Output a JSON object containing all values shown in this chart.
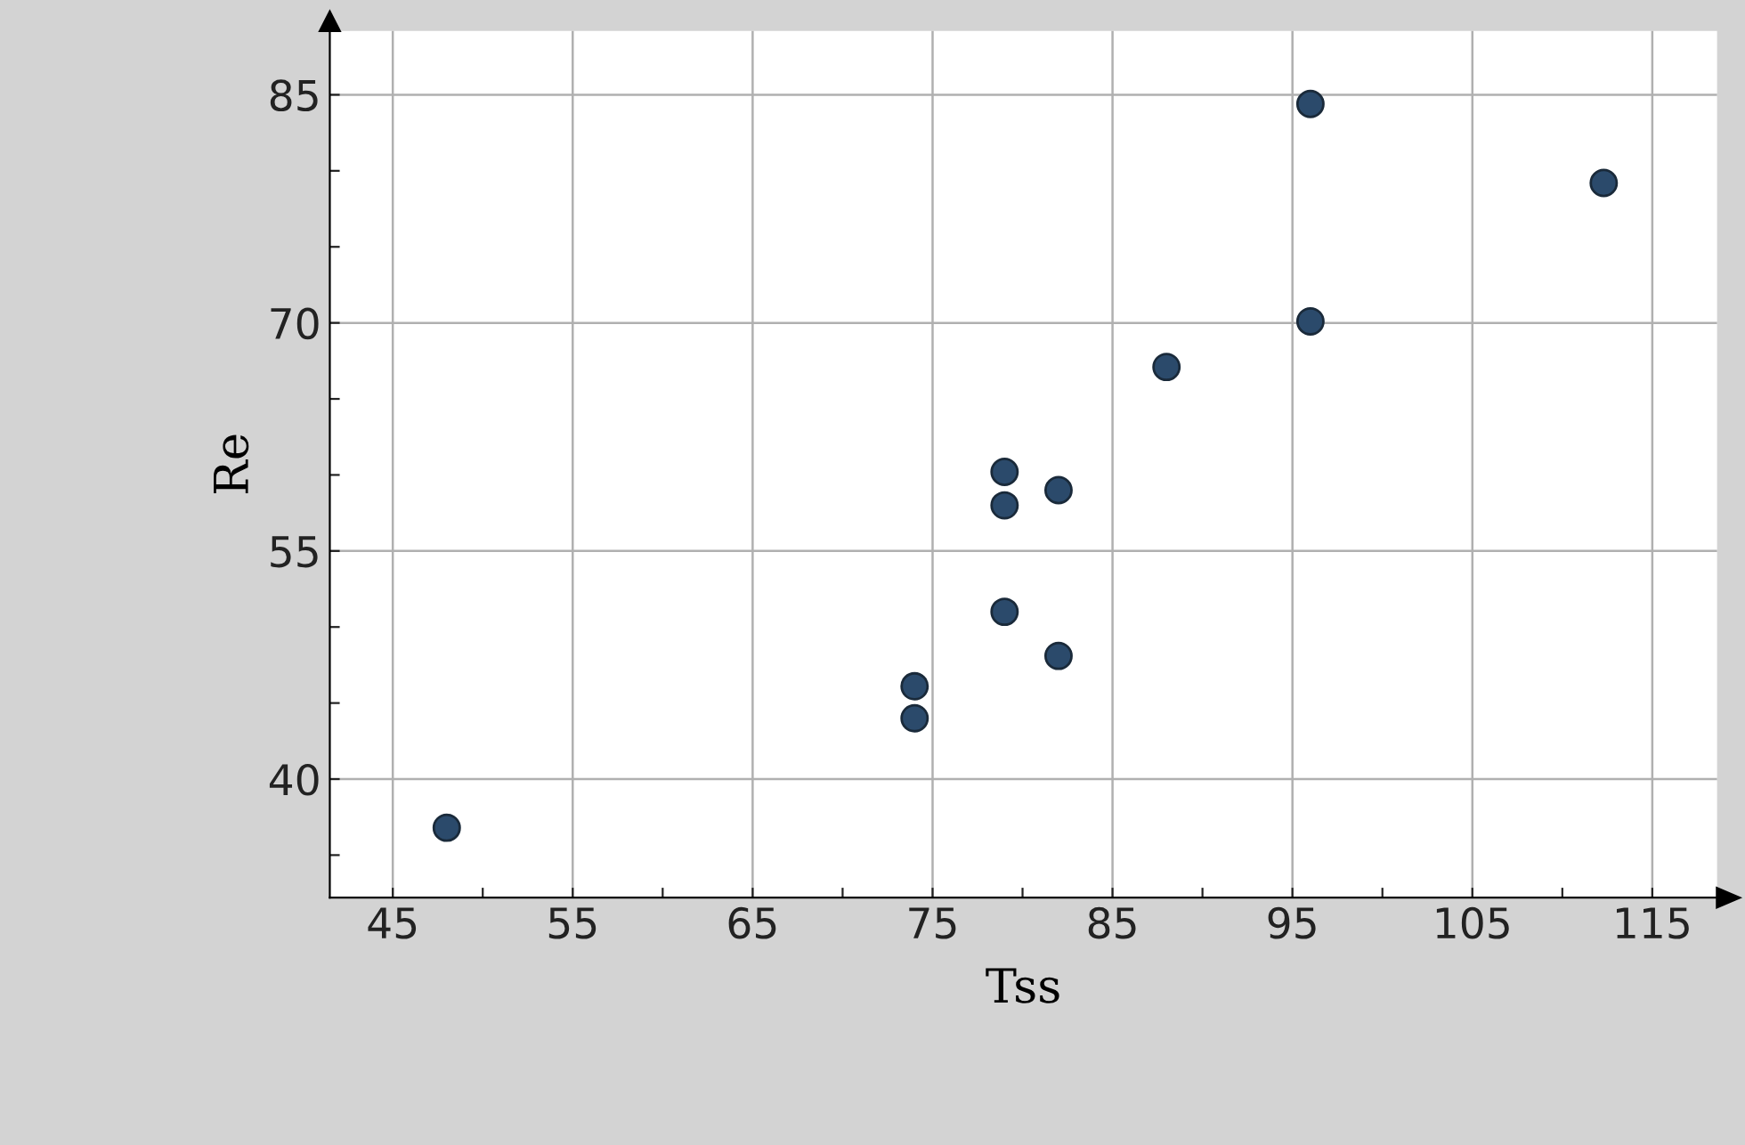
{
  "chart_data": {
    "type": "scatter",
    "xlabel": "Tss",
    "ylabel": "Re",
    "x": [
      48,
      74,
      74,
      79,
      79,
      79,
      82,
      82,
      88,
      96,
      96,
      112.3
    ],
    "series": [
      {
        "color": "#2b4a6b",
        "values": [
          36.8,
          46.1,
          44.0,
          51.0,
          58.0,
          60.2,
          59.0,
          48.1,
          67.1,
          70.1,
          84.4,
          79.2
        ]
      }
    ],
    "xlim": [
      41.5,
      118.6
    ],
    "ylim": [
      32.2,
      89.2
    ],
    "xticks": [
      45,
      {
        "value": 50,
        "label": null
      },
      55,
      {
        "value": 60,
        "label": null
      },
      65,
      {
        "value": 70,
        "label": null
      },
      75,
      {
        "value": 80,
        "label": null
      },
      85,
      {
        "value": 90,
        "label": null
      },
      95,
      {
        "value": 100,
        "label": null
      },
      105,
      {
        "value": 110,
        "label": null
      },
      115
    ],
    "yticks": [
      {
        "value": 35,
        "label": null
      },
      40,
      {
        "value": 45,
        "label": null
      },
      {
        "value": 50,
        "label": null
      },
      55,
      {
        "value": 60,
        "label": null
      },
      {
        "value": 65,
        "label": null
      },
      70,
      {
        "value": 75,
        "label": null
      },
      {
        "value": 80,
        "label": null
      },
      85
    ],
    "grid": true,
    "marker": "circle"
  }
}
